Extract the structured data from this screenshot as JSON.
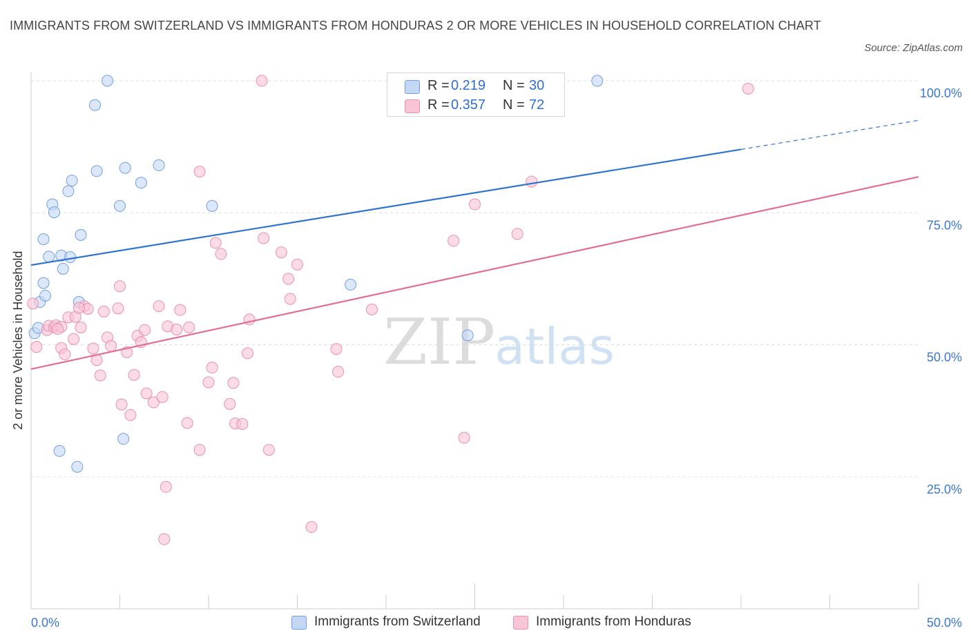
{
  "title": "IMMIGRANTS FROM SWITZERLAND VS IMMIGRANTS FROM HONDURAS 2 OR MORE VEHICLES IN HOUSEHOLD CORRELATION CHART",
  "source": "Source: ZipAtlas.com",
  "watermark": {
    "zip": "ZIP",
    "atlas": "atlas"
  },
  "colors": {
    "blue_fill": "#c4d8f5",
    "blue_stroke": "#6f9fe0",
    "blue_line": "#2f73d0",
    "pink_fill": "#f8c5d6",
    "pink_stroke": "#ea8eaf",
    "pink_line": "#e36b98",
    "axis_text": "#3a78d0",
    "grid": "#dddddd"
  },
  "stats": [
    {
      "series": "Immigrants from Switzerland",
      "r_label": "R =",
      "r_value": "0.219",
      "n_label": "N =",
      "n_value": "30"
    },
    {
      "series": "Immigrants from Honduras",
      "r_label": "R =",
      "r_value": "0.357",
      "n_label": "N =",
      "n_value": "72"
    }
  ],
  "legend": [
    "Immigrants from Switzerland",
    "Immigrants from Honduras"
  ],
  "chart_data": {
    "type": "scatter",
    "title": "IMMIGRANTS FROM SWITZERLAND VS IMMIGRANTS FROM HONDURAS 2 OR MORE VEHICLES IN HOUSEHOLD CORRELATION CHART",
    "xlabel": "",
    "ylabel": "2 or more Vehicles in Household",
    "xlim": [
      0,
      50
    ],
    "ylim": [
      0,
      100
    ],
    "x_tick_labels": [
      "0.0%",
      "50.0%"
    ],
    "y_tick_values": [
      25,
      50,
      75,
      100
    ],
    "y_tick_labels": [
      "25.0%",
      "50.0%",
      "75.0%",
      "100.0%"
    ],
    "grid": true,
    "legend_position": "bottom-center",
    "series": [
      {
        "name": "Immigrants from Switzerland",
        "color": "blue",
        "R": 0.219,
        "N": 30,
        "trend": {
          "x_start": 0,
          "y_start": 65.1,
          "x_end": 40,
          "y_end": 87.0,
          "dashed_to_x": 50,
          "dashed_to_y": 92.5
        },
        "points": [
          [
            0.2,
            52.2
          ],
          [
            0.5,
            58.1
          ],
          [
            0.7,
            61.7
          ],
          [
            0.7,
            70.0
          ],
          [
            0.8,
            59.3
          ],
          [
            1.0,
            66.7
          ],
          [
            1.2,
            76.6
          ],
          [
            1.3,
            75.1
          ],
          [
            1.7,
            66.9
          ],
          [
            1.8,
            64.4
          ],
          [
            2.1,
            79.1
          ],
          [
            2.3,
            81.1
          ],
          [
            2.7,
            58.1
          ],
          [
            2.8,
            70.8
          ],
          [
            2.2,
            66.6
          ],
          [
            1.6,
            29.9
          ],
          [
            2.6,
            26.9
          ],
          [
            3.6,
            95.4
          ],
          [
            3.7,
            82.9
          ],
          [
            4.3,
            100.0
          ],
          [
            5.0,
            76.3
          ],
          [
            5.2,
            32.2
          ],
          [
            5.3,
            83.5
          ],
          [
            6.2,
            80.7
          ],
          [
            7.2,
            84.0
          ],
          [
            10.2,
            76.3
          ],
          [
            18.0,
            61.4
          ],
          [
            24.6,
            51.8
          ],
          [
            31.9,
            100.0
          ],
          [
            0.4,
            53.2
          ]
        ]
      },
      {
        "name": "Immigrants from Honduras",
        "color": "pink",
        "R": 0.357,
        "N": 72,
        "trend": {
          "x_start": 0,
          "y_start": 45.4,
          "x_end": 50,
          "y_end": 81.8
        },
        "points": [
          [
            0.1,
            57.8
          ],
          [
            0.3,
            49.6
          ],
          [
            0.9,
            52.8
          ],
          [
            1.0,
            53.6
          ],
          [
            1.3,
            53.3
          ],
          [
            1.4,
            53.7
          ],
          [
            1.7,
            53.4
          ],
          [
            1.7,
            49.4
          ],
          [
            1.9,
            48.2
          ],
          [
            2.1,
            55.2
          ],
          [
            2.4,
            51.1
          ],
          [
            2.5,
            55.3
          ],
          [
            2.8,
            53.3
          ],
          [
            3.0,
            57.3
          ],
          [
            3.2,
            56.8
          ],
          [
            3.5,
            49.3
          ],
          [
            3.7,
            47.1
          ],
          [
            3.9,
            44.2
          ],
          [
            4.1,
            56.3
          ],
          [
            4.3,
            51.4
          ],
          [
            4.5,
            49.8
          ],
          [
            4.9,
            56.9
          ],
          [
            5.0,
            61.1
          ],
          [
            5.1,
            38.7
          ],
          [
            5.4,
            48.6
          ],
          [
            5.6,
            36.7
          ],
          [
            5.8,
            44.3
          ],
          [
            6.0,
            51.7
          ],
          [
            6.2,
            50.5
          ],
          [
            6.4,
            52.8
          ],
          [
            6.5,
            40.8
          ],
          [
            6.9,
            39.1
          ],
          [
            7.2,
            57.3
          ],
          [
            7.4,
            40.1
          ],
          [
            7.6,
            23.1
          ],
          [
            7.7,
            53.5
          ],
          [
            7.5,
            13.2
          ],
          [
            8.2,
            52.9
          ],
          [
            8.4,
            56.6
          ],
          [
            8.8,
            35.2
          ],
          [
            8.9,
            53.3
          ],
          [
            9.5,
            82.8
          ],
          [
            9.5,
            30.1
          ],
          [
            10.0,
            42.9
          ],
          [
            10.2,
            45.7
          ],
          [
            10.4,
            69.3
          ],
          [
            10.7,
            67.2
          ],
          [
            11.2,
            38.8
          ],
          [
            11.4,
            42.8
          ],
          [
            11.5,
            35.1
          ],
          [
            11.9,
            35.0
          ],
          [
            12.2,
            48.4
          ],
          [
            12.3,
            54.8
          ],
          [
            13.0,
            100.0
          ],
          [
            13.1,
            70.2
          ],
          [
            13.4,
            30.1
          ],
          [
            14.1,
            67.5
          ],
          [
            14.5,
            62.5
          ],
          [
            14.6,
            58.7
          ],
          [
            15.0,
            65.2
          ],
          [
            15.8,
            15.5
          ],
          [
            17.2,
            49.2
          ],
          [
            17.3,
            44.9
          ],
          [
            19.2,
            56.7
          ],
          [
            23.8,
            69.7
          ],
          [
            24.4,
            32.4
          ],
          [
            25.0,
            76.6
          ],
          [
            27.4,
            71.0
          ],
          [
            28.2,
            80.9
          ],
          [
            40.4,
            98.5
          ],
          [
            1.5,
            53.0
          ],
          [
            2.7,
            57.0
          ]
        ]
      }
    ]
  }
}
